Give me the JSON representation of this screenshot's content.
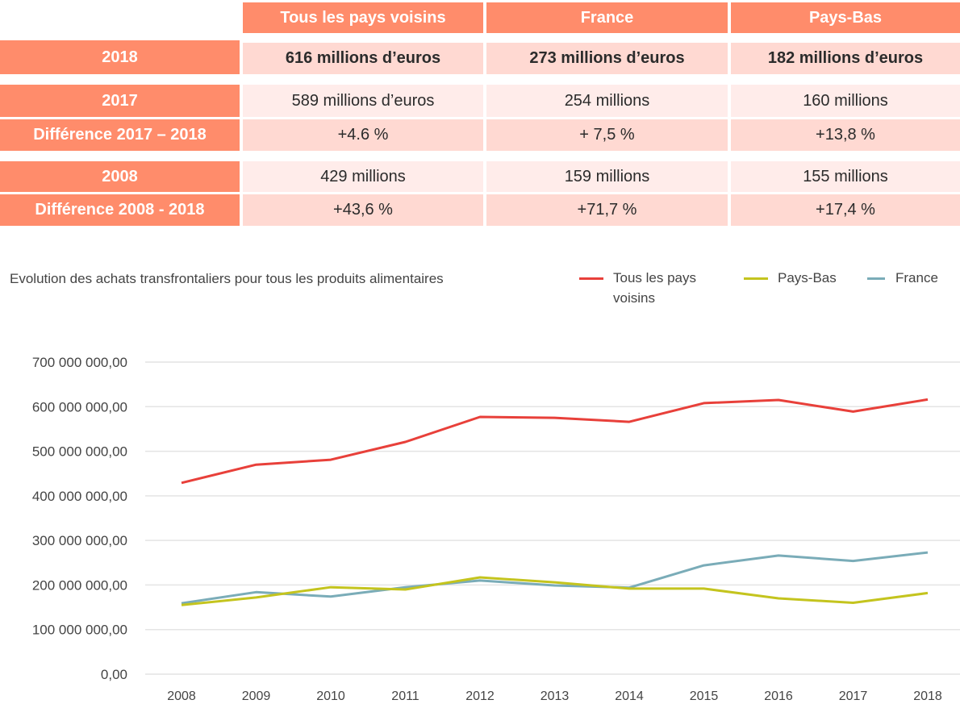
{
  "table": {
    "columns": [
      "Tous les pays voisins",
      "France",
      "Pays-Bas"
    ],
    "rows": [
      {
        "label": "2018",
        "values": [
          "616 millions d’euros",
          "273 millions d’euros",
          "182 millions d’euros"
        ],
        "emphasis": true
      },
      {
        "label": "2017",
        "values": [
          "589 millions d’euros",
          "254 millions",
          "160 millions"
        ]
      },
      {
        "label": "Différence 2017 – 2018",
        "values": [
          "+4.6 %",
          "+ 7,5 %",
          "+13,8 %"
        ]
      },
      {
        "label": "2008",
        "values": [
          "429 millions",
          "159 millions",
          "155 millions"
        ]
      },
      {
        "label": "Différence 2008 - 2018",
        "values": [
          "+43,6 %",
          "+71,7 %",
          "+17,4 %"
        ]
      }
    ]
  },
  "colors": {
    "header_bg": "#ff8c6b",
    "cell_dark": "#ffd9d2",
    "cell_light": "#ffecea"
  },
  "chart_data": {
    "type": "line",
    "title": "Evolution des achats transfrontaliers pour tous les produits alimentaires",
    "xlabel": "",
    "ylabel": "",
    "x": [
      "2008",
      "2009",
      "2010",
      "2011",
      "2012",
      "2013",
      "2014",
      "2015",
      "2016",
      "2017",
      "2018"
    ],
    "ylim": [
      0,
      700000000
    ],
    "yticks": [
      0,
      100000000,
      200000000,
      300000000,
      400000000,
      500000000,
      600000000,
      700000000
    ],
    "ytick_labels": [
      "0,00",
      "100 000 000,00",
      "200 000 000,00",
      "300 000 000,00",
      "400 000 000,00",
      "500 000 000,00",
      "600 000 000,00",
      "700 000 000,00"
    ],
    "grid": true,
    "legend_position": "top-right",
    "series": [
      {
        "name": "Tous les pays voisins",
        "legend_lines": [
          "Tous les pays",
          "voisins"
        ],
        "color": "#e8403a",
        "values": [
          429000000,
          470000000,
          481000000,
          521000000,
          577000000,
          575000000,
          566000000,
          608000000,
          615000000,
          589000000,
          616000000
        ]
      },
      {
        "name": "Pays-Bas",
        "legend_lines": [
          "Pays-Bas"
        ],
        "color": "#c4c41e",
        "values": [
          155000000,
          172000000,
          195000000,
          190000000,
          217000000,
          206000000,
          192000000,
          192000000,
          170000000,
          160000000,
          182000000
        ]
      },
      {
        "name": "France",
        "legend_lines": [
          "France"
        ],
        "color": "#7aacb8",
        "values": [
          159000000,
          184000000,
          174000000,
          195000000,
          210000000,
          199000000,
          194000000,
          244000000,
          266000000,
          254000000,
          273000000
        ]
      }
    ]
  }
}
